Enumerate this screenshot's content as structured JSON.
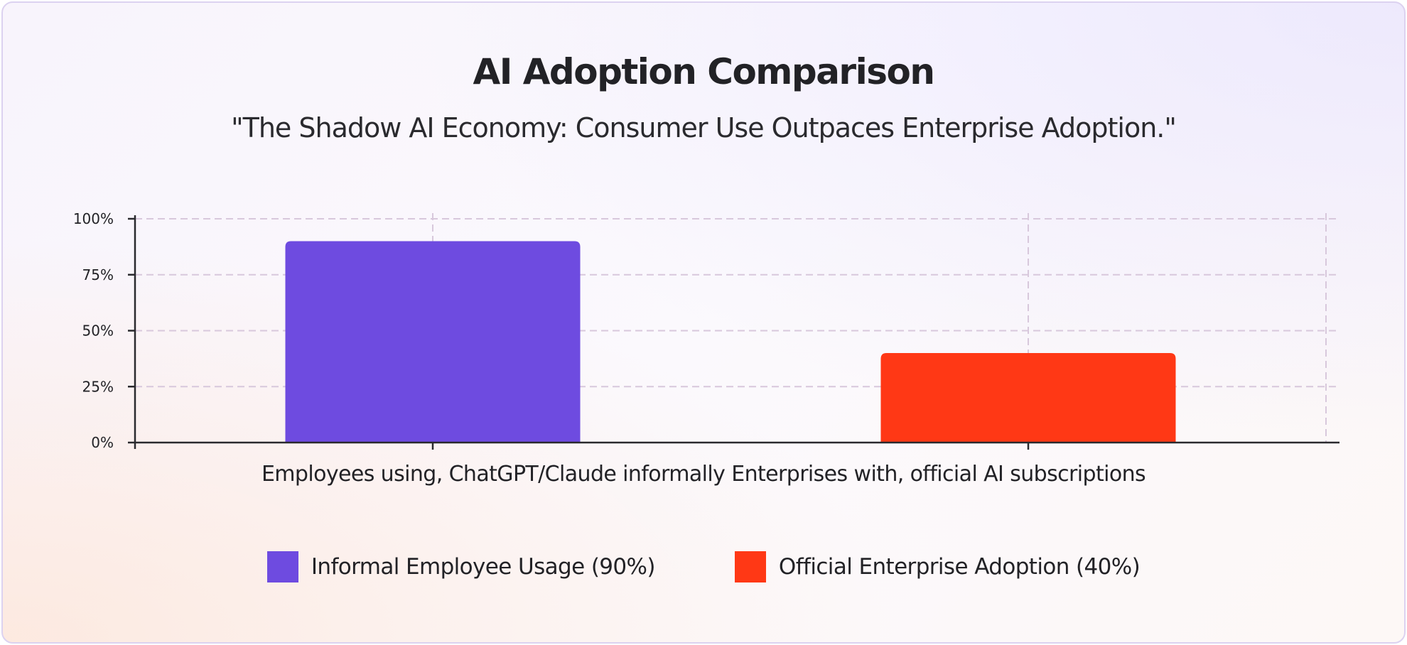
{
  "chart_data": {
    "type": "bar",
    "title": "AI Adoption Comparison",
    "subtitle": "\"The Shadow AI Economy: Consumer Use Outpaces Enterprise Adoption.\"",
    "xlabel": "Employees using, ChatGPT/Claude informally Enterprises with, official AI subscriptions",
    "ylabel": "",
    "categories": [
      "Employees using, ChatGPT/Claude informally",
      "Enterprises with, official AI subscriptions"
    ],
    "values": [
      90,
      40
    ],
    "ylim": [
      0,
      100
    ],
    "yticks": [
      {
        "value": 0,
        "label": "0%"
      },
      {
        "value": 25,
        "label": "25%"
      },
      {
        "value": 50,
        "label": "50%"
      },
      {
        "value": 75,
        "label": "75%"
      },
      {
        "value": 100,
        "label": "100%"
      }
    ],
    "grid": true,
    "legend_position": "bottom",
    "legend": [
      {
        "label": "Informal Employee Usage (90%)",
        "color": "#6e4be0"
      },
      {
        "label": "Official Enterprise Adoption (40%)",
        "color": "#ff3815"
      }
    ],
    "colors": [
      "#6e4be0",
      "#ff3815"
    ]
  }
}
